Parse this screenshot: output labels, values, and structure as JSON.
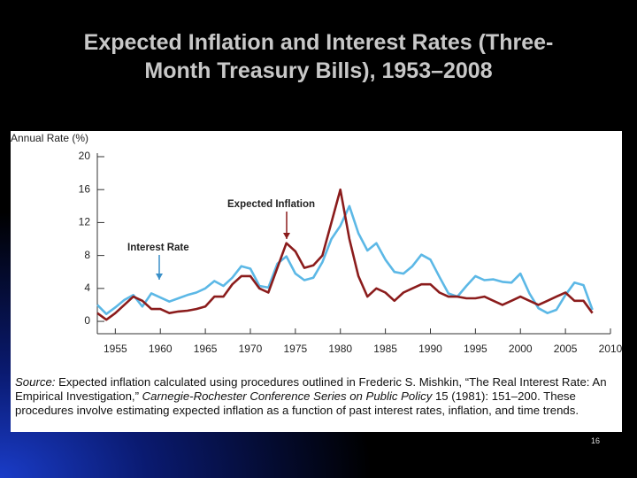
{
  "title": [
    "Expected Inflation and Interest Rates (Three-",
    "Month Treasury Bills), 1953–2008"
  ],
  "chart_data": {
    "type": "line",
    "y_label": "Annual Rate (%)",
    "annotations": [
      "Expected Inflation",
      "Interest Rate"
    ],
    "x": [
      1953,
      1954,
      1955,
      1956,
      1957,
      1958,
      1959,
      1960,
      1961,
      1962,
      1963,
      1964,
      1965,
      1966,
      1967,
      1968,
      1969,
      1970,
      1971,
      1972,
      1973,
      1974,
      1975,
      1976,
      1977,
      1978,
      1979,
      1980,
      1981,
      1982,
      1983,
      1984,
      1985,
      1986,
      1987,
      1988,
      1989,
      1990,
      1991,
      1992,
      1993,
      1994,
      1995,
      1996,
      1997,
      1998,
      1999,
      2000,
      2001,
      2002,
      2003,
      2004,
      2005,
      2006,
      2007,
      2008
    ],
    "series": [
      {
        "name": "Interest Rate",
        "color": "#5cb8e6",
        "values": [
          2.0,
          0.9,
          1.7,
          2.6,
          3.2,
          1.8,
          3.4,
          2.9,
          2.4,
          2.8,
          3.2,
          3.5,
          4.0,
          4.9,
          4.3,
          5.3,
          6.7,
          6.4,
          4.3,
          4.1,
          7.0,
          7.9,
          5.8,
          5.0,
          5.3,
          7.2,
          10.0,
          11.6,
          14.0,
          10.7,
          8.6,
          9.5,
          7.5,
          6.0,
          5.8,
          6.7,
          8.1,
          7.5,
          5.4,
          3.4,
          3.0,
          4.3,
          5.5,
          5.0,
          5.1,
          4.8,
          4.7,
          5.8,
          3.4,
          1.6,
          1.0,
          1.4,
          3.2,
          4.7,
          4.4,
          1.4
        ]
      },
      {
        "name": "Expected Inflation",
        "color": "#8b1c1c",
        "values": [
          1.0,
          0.2,
          1.0,
          2.0,
          3.0,
          2.5,
          1.5,
          1.5,
          1.0,
          1.2,
          1.3,
          1.5,
          1.8,
          3.0,
          3.0,
          4.5,
          5.5,
          5.5,
          4.0,
          3.5,
          6.5,
          9.5,
          8.5,
          6.5,
          6.8,
          8.0,
          12.0,
          16.0,
          10.0,
          5.5,
          3.0,
          4.0,
          3.5,
          2.5,
          3.5,
          4.0,
          4.5,
          4.5,
          3.5,
          3.0,
          3.0,
          2.8,
          2.8,
          3.0,
          2.5,
          2.0,
          2.5,
          3.0,
          2.5,
          2.0,
          2.5,
          3.0,
          3.5,
          2.5,
          2.5,
          1.0
        ]
      }
    ],
    "xlim": [
      1953,
      2010
    ],
    "xticks": [
      1955,
      1960,
      1965,
      1970,
      1975,
      1980,
      1985,
      1990,
      1995,
      2000,
      2005,
      2010
    ],
    "ylim": [
      -1.5,
      20
    ],
    "yticks": [
      0,
      4,
      8,
      12,
      16,
      20
    ]
  },
  "source": {
    "label": "Source:",
    "text": " Expected inflation calculated using procedures outlined in Frederic S. Mishkin, “The Real Interest Rate: An Empirical Investigation,” ",
    "journal": "Carnegie-Rochester Conference Series on Public Policy",
    "rest": " 15 (1981): 151–200. These procedures involve estimating expected inflation as a function of past interest rates, inflation, and time trends."
  },
  "page_number": "16"
}
